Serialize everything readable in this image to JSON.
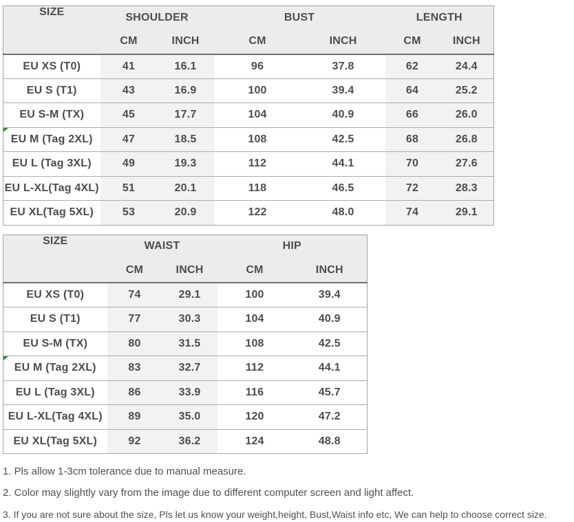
{
  "chart_data": [
    {
      "type": "table",
      "name": "size-chart-shoulder-bust-length",
      "size_header": "SIZE",
      "unit_headers": [
        "CM",
        "INCH"
      ],
      "groups": [
        {
          "label": "SHOULDER",
          "shaded": true
        },
        {
          "label": "BUST",
          "shaded": false
        },
        {
          "label": "LENGTH",
          "shaded": true
        }
      ],
      "rows": [
        {
          "size": "EU XS (T0)",
          "marker": false,
          "values": [
            "41",
            "16.1",
            "96",
            "37.8",
            "62",
            "24.4"
          ]
        },
        {
          "size": "EU S (T1)",
          "marker": false,
          "values": [
            "43",
            "16.9",
            "100",
            "39.4",
            "64",
            "25.2"
          ]
        },
        {
          "size": "EU S-M (TX)",
          "marker": false,
          "values": [
            "45",
            "17.7",
            "104",
            "40.9",
            "66",
            "26.0"
          ]
        },
        {
          "size": "EU M (Tag 2XL)",
          "marker": true,
          "values": [
            "47",
            "18.5",
            "108",
            "42.5",
            "68",
            "26.8"
          ]
        },
        {
          "size": "EU L (Tag 3XL)",
          "marker": false,
          "values": [
            "49",
            "19.3",
            "112",
            "44.1",
            "70",
            "27.6"
          ]
        },
        {
          "size": "EU L-XL(Tag 4XL)",
          "marker": false,
          "values": [
            "51",
            "20.1",
            "118",
            "46.5",
            "72",
            "28.3"
          ]
        },
        {
          "size": "EU XL(Tag 5XL)",
          "marker": false,
          "values": [
            "53",
            "20.9",
            "122",
            "48.0",
            "74",
            "29.1"
          ]
        }
      ]
    },
    {
      "type": "table",
      "name": "size-chart-waist-hip",
      "size_header": "SIZE",
      "unit_headers": [
        "CM",
        "INCH"
      ],
      "groups": [
        {
          "label": "WAIST",
          "shaded": true
        },
        {
          "label": "HIP",
          "shaded": false
        }
      ],
      "rows": [
        {
          "size": "EU XS (T0)",
          "marker": false,
          "values": [
            "74",
            "29.1",
            "100",
            "39.4"
          ]
        },
        {
          "size": "EU S (T1)",
          "marker": false,
          "values": [
            "77",
            "30.3",
            "104",
            "40.9"
          ]
        },
        {
          "size": "EU S-M (TX)",
          "marker": false,
          "values": [
            "80",
            "31.5",
            "108",
            "42.5"
          ]
        },
        {
          "size": "EU M (Tag 2XL)",
          "marker": true,
          "values": [
            "83",
            "32.7",
            "112",
            "44.1"
          ]
        },
        {
          "size": "EU L (Tag 3XL)",
          "marker": false,
          "values": [
            "86",
            "33.9",
            "116",
            "45.7"
          ]
        },
        {
          "size": "EU L-XL(Tag 4XL)",
          "marker": false,
          "values": [
            "89",
            "35.0",
            "120",
            "47.2"
          ]
        },
        {
          "size": "EU XL(Tag 5XL)",
          "marker": false,
          "values": [
            "92",
            "36.2",
            "124",
            "48.8"
          ]
        }
      ]
    }
  ],
  "notes": [
    "1. Pls allow 1-3cm tolerance due to manual measure.",
    "2. Color may slightly vary from the image due to different computer screen and light affect.",
    "3. If you are not sure about the size, Pls let us know your weight,height, Bust,Waist info etc, We can help to choose correct size."
  ],
  "colors": {
    "header_bg": "#ececec",
    "shaded_column_bg": "#f2f2f2",
    "marker_green": "#2e8b2e",
    "table_text": "#4c4c4c",
    "note_text": "#4f4f4f"
  }
}
